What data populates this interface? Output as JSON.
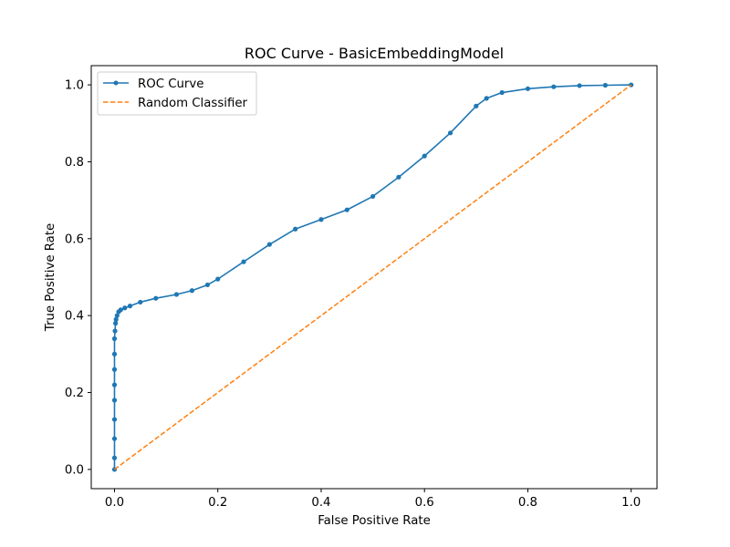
{
  "chart_data": {
    "type": "line",
    "title": "ROC Curve - BasicEmbeddingModel",
    "xlabel": "False Positive Rate",
    "ylabel": "True Positive Rate",
    "xlim": [
      -0.045,
      1.05
    ],
    "ylim": [
      -0.05,
      1.05
    ],
    "x_ticks": [
      0.0,
      0.2,
      0.4,
      0.6,
      0.8,
      1.0
    ],
    "y_ticks": [
      0.0,
      0.2,
      0.4,
      0.6,
      0.8,
      1.0
    ],
    "x_tick_labels": [
      "0.0",
      "0.2",
      "0.4",
      "0.6",
      "0.8",
      "1.0"
    ],
    "y_tick_labels": [
      "0.0",
      "0.2",
      "0.4",
      "0.6",
      "0.8",
      "1.0"
    ],
    "grid": false,
    "legend_position": "upper left",
    "series": [
      {
        "name": "ROC Curve",
        "color": "#1f77b4",
        "style": "solid",
        "marker": "dot",
        "x": [
          0.0,
          0.0,
          0.0,
          0.0,
          0.0,
          0.0,
          0.0,
          0.0,
          0.0,
          0.001,
          0.002,
          0.003,
          0.005,
          0.008,
          0.012,
          0.02,
          0.03,
          0.05,
          0.08,
          0.12,
          0.15,
          0.18,
          0.2,
          0.25,
          0.3,
          0.35,
          0.4,
          0.45,
          0.5,
          0.55,
          0.6,
          0.65,
          0.7,
          0.72,
          0.75,
          0.8,
          0.85,
          0.9,
          0.95,
          1.0
        ],
        "y": [
          0.0,
          0.03,
          0.08,
          0.13,
          0.18,
          0.22,
          0.26,
          0.3,
          0.34,
          0.36,
          0.38,
          0.39,
          0.4,
          0.41,
          0.415,
          0.42,
          0.425,
          0.435,
          0.445,
          0.455,
          0.465,
          0.48,
          0.495,
          0.54,
          0.585,
          0.625,
          0.65,
          0.675,
          0.71,
          0.76,
          0.815,
          0.875,
          0.945,
          0.965,
          0.98,
          0.99,
          0.995,
          0.998,
          0.999,
          1.0
        ]
      },
      {
        "name": "Random Classifier",
        "color": "#ff7f0e",
        "style": "dashed",
        "marker": "none",
        "x": [
          0.0,
          1.0
        ],
        "y": [
          0.0,
          1.0
        ]
      }
    ]
  }
}
